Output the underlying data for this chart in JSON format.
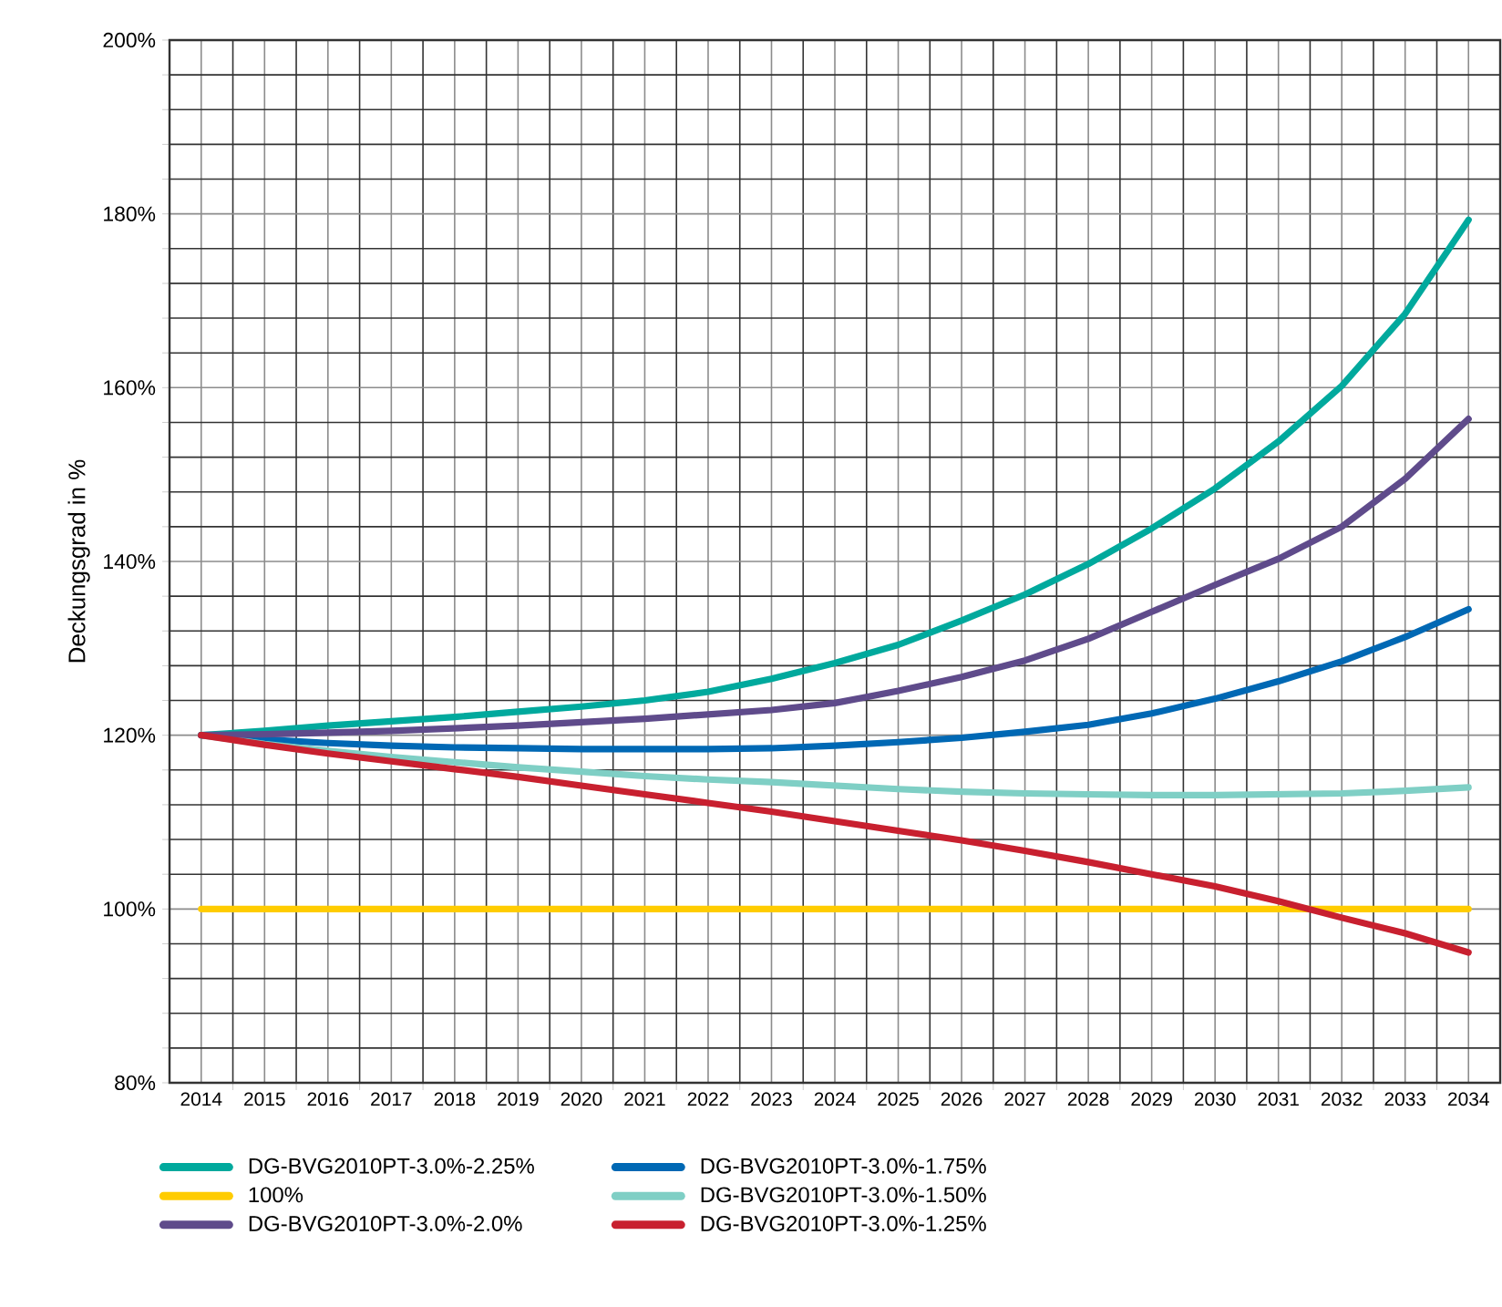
{
  "chart_data": {
    "type": "line",
    "ylabel": "Deckungsgrad in %",
    "x": [
      2014,
      2015,
      2016,
      2017,
      2018,
      2019,
      2020,
      2021,
      2022,
      2023,
      2024,
      2025,
      2026,
      2027,
      2028,
      2029,
      2030,
      2031,
      2032,
      2033,
      2034
    ],
    "xlim": [
      2013.5,
      2034.5
    ],
    "xticks": [
      2014,
      2015,
      2016,
      2017,
      2018,
      2019,
      2020,
      2021,
      2022,
      2023,
      2024,
      2025,
      2026,
      2027,
      2028,
      2029,
      2030,
      2031,
      2032,
      2033,
      2034
    ],
    "ylim": [
      80,
      200
    ],
    "yticks": [
      {
        "value": 80,
        "label": "80%"
      },
      {
        "value": 100,
        "label": "100%"
      },
      {
        "value": 120,
        "label": "120%"
      },
      {
        "value": 140,
        "label": "140%"
      },
      {
        "value": 160,
        "label": "160%"
      },
      {
        "value": 180,
        "label": "180%"
      },
      {
        "value": 200,
        "label": "200%"
      }
    ],
    "grid": true,
    "legend": "bottom",
    "marker": "none",
    "line_style": "solid",
    "series": [
      {
        "name": "DG-BVG2010PT-3.0%-2.25%",
        "color": "#00a99d",
        "values": [
          120,
          120.5,
          121.1,
          121.6,
          122.1,
          122.7,
          123.3,
          124.0,
          125.0,
          126.5,
          128.3,
          130.4,
          133.2,
          136.2,
          139.7,
          143.8,
          148.4,
          153.8,
          160.2,
          168.5,
          179.3
        ]
      },
      {
        "name": "DG-BVG2010PT-3.0%-1.75%",
        "color": "#0068b4",
        "values": [
          120,
          119.5,
          119.1,
          118.8,
          118.6,
          118.5,
          118.4,
          118.4,
          118.4,
          118.5,
          118.8,
          119.2,
          119.7,
          120.4,
          121.2,
          122.5,
          124.2,
          126.2,
          128.5,
          131.3,
          134.5
        ]
      },
      {
        "name": "100%",
        "color": "#ffcc00",
        "values": [
          100,
          100,
          100,
          100,
          100,
          100,
          100,
          100,
          100,
          100,
          100,
          100,
          100,
          100,
          100,
          100,
          100,
          100,
          100,
          100,
          100
        ]
      },
      {
        "name": "DG-BVG2010PT-3.0%-1.50%",
        "color": "#7fcfc5",
        "values": [
          120,
          119.0,
          118.2,
          117.5,
          116.9,
          116.3,
          115.8,
          115.3,
          114.9,
          114.6,
          114.2,
          113.8,
          113.5,
          113.3,
          113.2,
          113.1,
          113.1,
          113.2,
          113.3,
          113.6,
          114.0
        ]
      },
      {
        "name": "DG-BVG2010PT-3.0%-2.0%",
        "color": "#5f4b8b",
        "values": [
          120,
          120.1,
          120.3,
          120.5,
          120.8,
          121.1,
          121.5,
          121.9,
          122.4,
          122.9,
          123.7,
          125.1,
          126.7,
          128.6,
          131.1,
          134.2,
          137.3,
          140.3,
          144.0,
          149.5,
          156.4
        ]
      },
      {
        "name": "DG-BVG2010PT-3.0%-1.25%",
        "color": "#c8202f",
        "values": [
          120,
          118.9,
          117.9,
          117.0,
          116.1,
          115.2,
          114.2,
          113.2,
          112.2,
          111.2,
          110.1,
          109.0,
          107.9,
          106.7,
          105.4,
          104.0,
          102.6,
          100.9,
          99.0,
          97.2,
          95.0
        ]
      }
    ]
  }
}
